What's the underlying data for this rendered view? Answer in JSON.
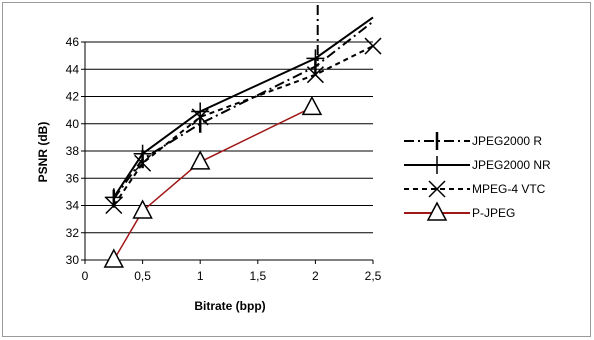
{
  "chart_data": {
    "type": "line",
    "xlabel": "Bitrate (bpp)",
    "ylabel": "PSNR (dB)",
    "xlim": [
      0,
      2.5
    ],
    "ylim": [
      30,
      47
    ],
    "x_ticks": [
      "0",
      "0,5",
      "1",
      "1,5",
      "2",
      "2,5"
    ],
    "x_tick_values": [
      0,
      0.5,
      1,
      1.5,
      2,
      2.5
    ],
    "y_ticks": [
      "30",
      "32",
      "34",
      "36",
      "38",
      "40",
      "42",
      "44",
      "46"
    ],
    "y_tick_values": [
      30,
      32,
      34,
      36,
      38,
      40,
      42,
      44,
      46
    ],
    "grid": "horizontal",
    "legend_position": "right",
    "series": [
      {
        "name": "JPEG2000 R",
        "color": "#000000",
        "style": "dashdot",
        "marker": "bar",
        "x": [
          0.25,
          0.5,
          1,
          2,
          2.5
        ],
        "y": [
          34.5,
          37.4,
          40.0,
          44.2,
          47.5
        ]
      },
      {
        "name": "JPEG2000 NR",
        "color": "#000000",
        "style": "solid",
        "marker": "plus",
        "x": [
          0.25,
          0.5,
          1,
          2,
          2.5
        ],
        "y": [
          34.6,
          37.8,
          40.9,
          44.8,
          47.8
        ]
      },
      {
        "name": "MPEG-4 VTC",
        "color": "#000000",
        "style": "dashed",
        "marker": "x",
        "x": [
          0.25,
          0.5,
          1,
          2,
          2.5
        ],
        "y": [
          34.0,
          37.1,
          40.5,
          43.6,
          45.7
        ]
      },
      {
        "name": "P-JPEG",
        "color": "#a01818",
        "style": "solid",
        "marker": "triangle",
        "x": [
          0.25,
          0.5,
          1,
          1.97
        ],
        "y": [
          30.0,
          33.6,
          37.2,
          41.2
        ]
      }
    ]
  }
}
